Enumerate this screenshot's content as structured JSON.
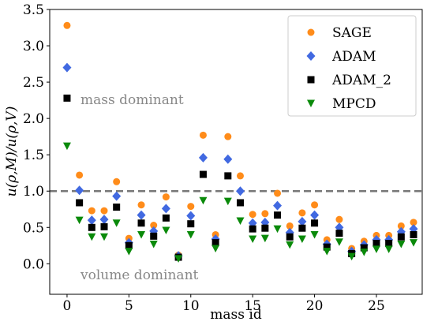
{
  "chart_data": {
    "type": "scatter",
    "xlabel": "mass id",
    "ylabel": "u(ρ,M)/u(ρ,V)",
    "x": [
      0,
      1,
      2,
      3,
      4,
      5,
      6,
      7,
      8,
      9,
      10,
      11,
      12,
      13,
      14,
      15,
      16,
      17,
      18,
      19,
      20,
      21,
      22,
      23,
      24,
      25,
      26,
      27,
      28
    ],
    "series": [
      {
        "name": "SAGE",
        "color": "#ff8c1a",
        "marker": "circle",
        "values": [
          3.28,
          1.22,
          0.73,
          0.73,
          1.13,
          0.35,
          0.81,
          0.53,
          0.92,
          0.12,
          0.79,
          1.77,
          0.4,
          1.75,
          1.21,
          0.68,
          0.69,
          0.97,
          0.52,
          0.7,
          0.81,
          0.33,
          0.61,
          0.21,
          0.31,
          0.39,
          0.39,
          0.52,
          0.57
        ]
      },
      {
        "name": "ADAM",
        "color": "#4169e1",
        "marker": "diamond",
        "values": [
          2.7,
          1.01,
          0.6,
          0.61,
          0.93,
          0.29,
          0.67,
          0.45,
          0.76,
          0.11,
          0.66,
          1.46,
          0.34,
          1.44,
          1.0,
          0.56,
          0.57,
          0.8,
          0.43,
          0.58,
          0.67,
          0.27,
          0.5,
          0.17,
          0.26,
          0.33,
          0.33,
          0.44,
          0.48
        ]
      },
      {
        "name": "ADAM_2",
        "color": "#000000",
        "marker": "square",
        "values": [
          2.28,
          0.84,
          0.5,
          0.51,
          0.78,
          0.25,
          0.56,
          0.38,
          0.63,
          0.09,
          0.55,
          1.23,
          0.29,
          1.21,
          0.84,
          0.48,
          0.49,
          0.67,
          0.37,
          0.49,
          0.56,
          0.23,
          0.42,
          0.14,
          0.22,
          0.28,
          0.28,
          0.37,
          0.4
        ]
      },
      {
        "name": "MPCD",
        "color": "#0a8a0a",
        "marker": "triangle-down",
        "values": [
          1.62,
          0.6,
          0.37,
          0.37,
          0.56,
          0.17,
          0.4,
          0.27,
          0.46,
          0.07,
          0.4,
          0.87,
          0.21,
          0.86,
          0.59,
          0.34,
          0.35,
          0.48,
          0.26,
          0.34,
          0.4,
          0.17,
          0.3,
          0.1,
          0.16,
          0.2,
          0.2,
          0.27,
          0.29
        ]
      }
    ],
    "hline": 1.0,
    "annotations": [
      "mass dominant",
      "volume dominant"
    ],
    "xlim": [
      -1.4,
      28.7
    ],
    "xticks": [
      0,
      5,
      10,
      15,
      20,
      25
    ],
    "ylim": [
      -0.42,
      3.5
    ],
    "yticks": [
      {
        "value": 0,
        "label": "0.0"
      },
      0.5,
      {
        "value": 1,
        "label": "1.0"
      },
      1.5,
      {
        "value": 2,
        "label": "2.0"
      },
      2.5,
      {
        "value": 3,
        "label": "3.0"
      },
      3.5
    ],
    "legend": "upper right"
  }
}
